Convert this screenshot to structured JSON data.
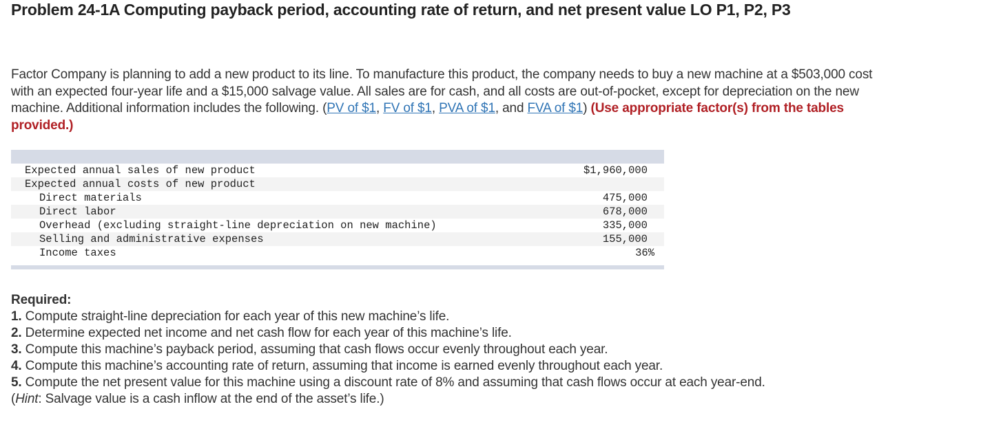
{
  "title": "Problem 24-1A Computing payback period, accounting rate of return, and net present value LO P1, P2, P3",
  "intro": {
    "text": "Factor Company is planning to add a new product to its line. To manufacture this product, the company needs to buy a new machine at a $503,000 cost with an expected four-year life and a $15,000 salvage value. All sales are for cash, and all costs are out-of-pocket, except for depreciation on the new machine. Additional information includes the following. (",
    "links": [
      "PV of $1",
      "FV of $1",
      "PVA of $1",
      "FVA of $1"
    ],
    "sep1": ", ",
    "sep2": ", ",
    "sep3": ", and ",
    "close": ")",
    "instruction": " (Use appropriate factor(s) from the tables provided.)"
  },
  "table": {
    "rows": [
      {
        "label": "Expected annual sales of new product",
        "value": "$1,960,000",
        "indent": false
      },
      {
        "label": "Expected annual costs of new product",
        "value": "",
        "indent": false
      },
      {
        "label": "Direct materials",
        "value": "475,000",
        "indent": true
      },
      {
        "label": "Direct labor",
        "value": "678,000",
        "indent": true
      },
      {
        "label": "Overhead (excluding straight-line depreciation on new machine)",
        "value": "335,000",
        "indent": true
      },
      {
        "label": "Selling and administrative expenses",
        "value": "155,000",
        "indent": true
      },
      {
        "label": "Income taxes",
        "value": "36%",
        "indent": true
      }
    ]
  },
  "required": {
    "heading": "Required:",
    "items": [
      {
        "num": "1.",
        "text": " Compute straight-line depreciation for each year of this new machine’s life."
      },
      {
        "num": "2.",
        "text": " Determine expected net income and net cash flow for each year of this machine’s life."
      },
      {
        "num": "3.",
        "text": " Compute this machine’s payback period, assuming that cash flows occur evenly throughout each year."
      },
      {
        "num": "4.",
        "text": " Compute this machine’s accounting rate of return, assuming that income is earned evenly throughout each year."
      },
      {
        "num": "5.",
        "text": " Compute the net present value for this machine using a discount rate of 8% and assuming that cash flows occur at each year-end."
      }
    ],
    "hint_open": "(",
    "hint_label": "Hint",
    "hint_text": ": Salvage value is a cash inflow at the end of the asset’s life.)"
  },
  "colors": {
    "link": "#2f74b5",
    "instruction": "#b01f24",
    "table_bar": "#d6dbe6",
    "table_alt_row": "#f3f3f3"
  }
}
